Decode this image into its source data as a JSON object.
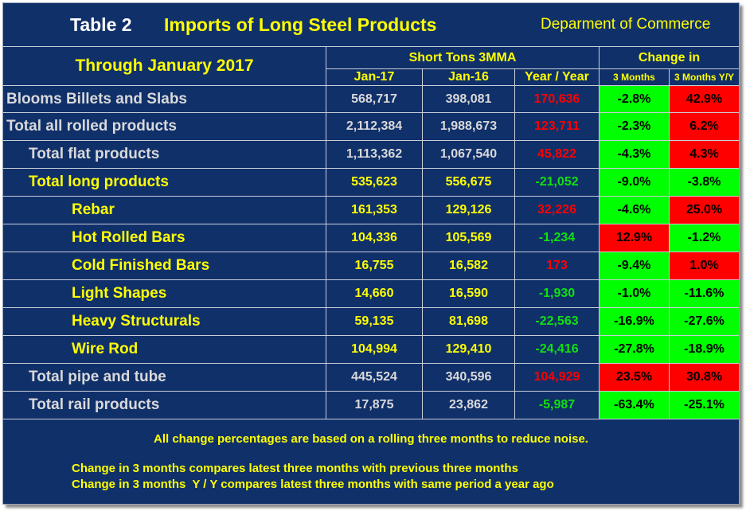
{
  "colors": {
    "panel_bg": "#10306a",
    "grid_line": "#c9ced8",
    "title_white": "#ffffff",
    "accent_yellow": "#ffff00",
    "label_gray": "#d9d9d9",
    "increase_text": "#ff0000",
    "decrease_text": "#10e010",
    "increase_fill": "#ff0000",
    "decrease_fill": "#00ff00",
    "cell_text": "#000000"
  },
  "chart_data": {
    "type": "table",
    "table_label": "Table 2",
    "title": "Imports of Long Steel Products",
    "source": "Deparment of Commerce",
    "period": "Through January 2017",
    "column_groups": [
      {
        "label": "Short Tons 3MMA",
        "columns": [
          "Jan-17",
          "Jan-16",
          "Year / Year"
        ]
      },
      {
        "label": "Change in",
        "columns": [
          "3 Months",
          "3 Months Y/Y"
        ]
      }
    ],
    "rows": [
      {
        "label": "Blooms Billets and Slabs",
        "level": 0,
        "highlight": false,
        "values": [
          "568,717",
          "398,081",
          "170,636",
          "-2.8%",
          "42.9%"
        ]
      },
      {
        "label": "Total all rolled products",
        "level": 0,
        "highlight": false,
        "values": [
          "2,112,384",
          "1,988,673",
          "123,711",
          "-2.3%",
          "6.2%"
        ]
      },
      {
        "label": "Total flat products",
        "level": 1,
        "highlight": false,
        "values": [
          "1,113,362",
          "1,067,540",
          "45,822",
          "-4.3%",
          "4.3%"
        ]
      },
      {
        "label": "Total long products",
        "level": 1,
        "highlight": true,
        "values": [
          "535,623",
          "556,675",
          "-21,052",
          "-9.0%",
          "-3.8%"
        ]
      },
      {
        "label": "Rebar",
        "level": 2,
        "highlight": true,
        "values": [
          "161,353",
          "129,126",
          "32,226",
          "-4.6%",
          "25.0%"
        ]
      },
      {
        "label": "Hot Rolled Bars",
        "level": 2,
        "highlight": true,
        "values": [
          "104,336",
          "105,569",
          "-1,234",
          "12.9%",
          "-1.2%"
        ]
      },
      {
        "label": "Cold Finished Bars",
        "level": 2,
        "highlight": true,
        "values": [
          "16,755",
          "16,582",
          "173",
          "-9.4%",
          "1.0%"
        ]
      },
      {
        "label": "Light Shapes",
        "level": 2,
        "highlight": true,
        "values": [
          "14,660",
          "16,590",
          "-1,930",
          "-1.0%",
          "-11.6%"
        ]
      },
      {
        "label": "Heavy Structurals",
        "level": 2,
        "highlight": true,
        "values": [
          "59,135",
          "81,698",
          "-22,563",
          "-16.9%",
          "-27.6%"
        ]
      },
      {
        "label": "Wire Rod",
        "level": 2,
        "highlight": true,
        "values": [
          "104,994",
          "129,410",
          "-24,416",
          "-27.8%",
          "-18.9%"
        ]
      },
      {
        "label": "Total pipe and tube",
        "level": 1,
        "highlight": false,
        "values": [
          "445,524",
          "340,596",
          "104,929",
          "23.5%",
          "30.8%"
        ]
      },
      {
        "label": "Total rail products",
        "level": 1,
        "highlight": false,
        "values": [
          "17,875",
          "23,862",
          "-5,987",
          "-63.4%",
          "-25.1%"
        ]
      }
    ],
    "notes": [
      "All change percentages are based on a rolling three months to reduce noise.",
      "Change in 3 months compares latest three months with previous three months",
      "Change in 3 months  Y / Y compares latest three months with same period a year ago"
    ]
  }
}
